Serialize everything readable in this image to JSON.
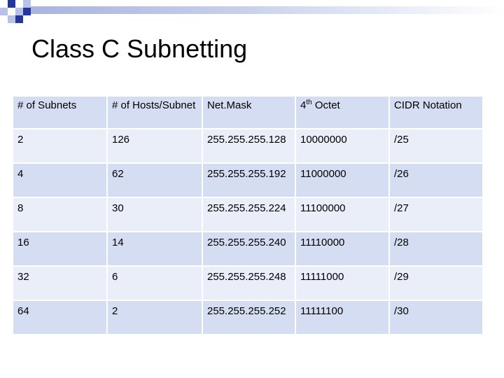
{
  "slide": {
    "title": "Class C Subnetting"
  },
  "table": {
    "headers": [
      {
        "text": "# of Subnets"
      },
      {
        "text": "# of Hosts/Subnet"
      },
      {
        "text": "Net.Mask"
      },
      {
        "base": "4",
        "sup": "th",
        "rest": " Octet"
      },
      {
        "text": "CIDR Notation"
      }
    ],
    "rows": [
      [
        "2",
        "126",
        "255.255.255.128",
        "10000000",
        "/25"
      ],
      [
        "4",
        "62",
        "255.255.255.192",
        "11000000",
        "/26"
      ],
      [
        "8",
        "30",
        "255.255.255.224",
        "11100000",
        "/27"
      ],
      [
        "16",
        "14",
        "255.255.255.240",
        "11110000",
        "/28"
      ],
      [
        "32",
        "6",
        "255.255.255.248",
        "11111000",
        "/29"
      ],
      [
        "64",
        "2",
        "255.255.255.252",
        "11111100",
        "/30"
      ]
    ]
  },
  "colors": {
    "header_bg": "#d4ddf1",
    "row_light": "#e9eef8",
    "row_dark": "#d4ddf1",
    "accent_dark": "#24389a",
    "accent_light": "#b8c2e6"
  }
}
